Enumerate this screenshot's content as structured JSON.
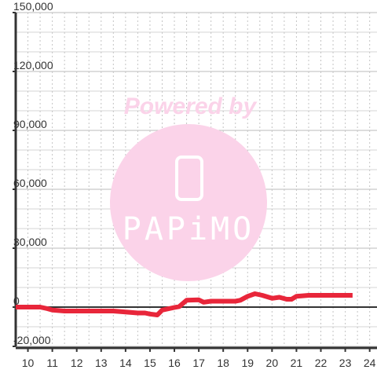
{
  "chart_data": {
    "type": "line",
    "title": "",
    "xlabel": "",
    "ylabel": "",
    "xlim": [
      9.5,
      24.3
    ],
    "ylim": [
      -20000,
      150000
    ],
    "grid": true,
    "x_ticks": [
      10,
      11,
      12,
      13,
      14,
      15,
      16,
      17,
      18,
      19,
      20,
      21,
      22,
      23,
      24
    ],
    "y_ticks": [
      -20000,
      0,
      30000,
      60000,
      90000,
      120000,
      150000
    ],
    "y_tick_labels": [
      "-20,000",
      "0",
      "30,000",
      "60,000",
      "90,000",
      "120,000",
      "150,000"
    ],
    "series": [
      {
        "color": "#e8263a",
        "points": [
          [
            9.5,
            0
          ],
          [
            10,
            0
          ],
          [
            10.5,
            0
          ],
          [
            10.8,
            -800
          ],
          [
            11,
            -1500
          ],
          [
            11.5,
            -2000
          ],
          [
            12,
            -2000
          ],
          [
            12.5,
            -2000
          ],
          [
            13,
            -2000
          ],
          [
            13.5,
            -2000
          ],
          [
            14,
            -2500
          ],
          [
            14.5,
            -3000
          ],
          [
            14.8,
            -3000
          ],
          [
            15,
            -3500
          ],
          [
            15.3,
            -4000
          ],
          [
            15.5,
            -1500
          ],
          [
            16,
            -200
          ],
          [
            16.2,
            300
          ],
          [
            16.5,
            3500
          ],
          [
            17,
            3700
          ],
          [
            17.2,
            2500
          ],
          [
            17.5,
            3000
          ],
          [
            18,
            3000
          ],
          [
            18.5,
            3000
          ],
          [
            18.7,
            3500
          ],
          [
            19,
            5500
          ],
          [
            19.3,
            6800
          ],
          [
            19.6,
            6000
          ],
          [
            20,
            4500
          ],
          [
            20.3,
            5000
          ],
          [
            20.6,
            4000
          ],
          [
            20.8,
            4000
          ],
          [
            21,
            5500
          ],
          [
            21.5,
            6000
          ],
          [
            22,
            6000
          ],
          [
            22.5,
            6000
          ],
          [
            23,
            6000
          ],
          [
            23.3,
            6000
          ]
        ]
      }
    ]
  },
  "watermark": {
    "text": "Powered by",
    "logo": "PAPiMO",
    "color": "#fbd3e9"
  }
}
